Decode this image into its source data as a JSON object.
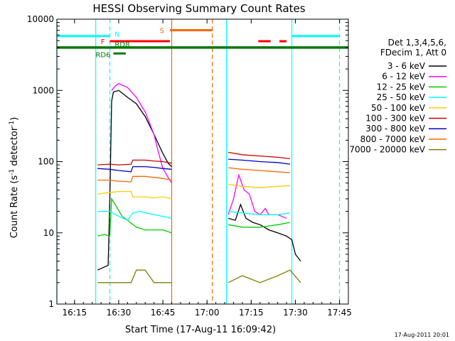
{
  "chart_data": {
    "type": "line",
    "title": "HESSI Observing Summary Count Rates",
    "xlabel": "Start Time (17-Aug-11 16:09:42)",
    "ylabel": "Count Rate (s",
    "ylabel_sup": "-1",
    "ylabel_tail": " detector",
    "ylabel_end": ")",
    "yscale": "log",
    "xlim": [
      16.15,
      17.8
    ],
    "ylim": [
      1,
      10000
    ],
    "x_ticks": [
      {
        "x": 16.25,
        "label": "16:15"
      },
      {
        "x": 16.5,
        "label": "16:30"
      },
      {
        "x": 16.75,
        "label": "16:45"
      },
      {
        "x": 17.0,
        "label": "17:00"
      },
      {
        "x": 17.25,
        "label": "17:15"
      },
      {
        "x": 17.5,
        "label": "17:30"
      },
      {
        "x": 17.75,
        "label": "17:45"
      }
    ],
    "y_ticks": [
      {
        "y": 1,
        "label": "1"
      },
      {
        "y": 10,
        "label": "10"
      },
      {
        "y": 100,
        "label": "100"
      },
      {
        "y": 1000,
        "label": "1000"
      },
      {
        "y": 10000,
        "label": "10000"
      }
    ],
    "legend_header": [
      "Det 1,3,4,5,6,",
      "FDecim 1, Att 0"
    ],
    "legend_position": "right",
    "series": [
      {
        "name": "3 - 6 keV",
        "color": "#000000",
        "segments": [
          [
            [
              16.38,
              3
            ],
            [
              16.44,
              3.5
            ],
            [
              16.45,
              30
            ],
            [
              16.46,
              700
            ],
            [
              16.47,
              950
            ],
            [
              16.5,
              1000
            ],
            [
              16.55,
              800
            ],
            [
              16.6,
              650
            ],
            [
              16.65,
              430
            ],
            [
              16.7,
              240
            ],
            [
              16.75,
              130
            ],
            [
              16.78,
              95
            ],
            [
              16.8,
              85
            ]
          ],
          [
            [
              17.12,
              16
            ],
            [
              17.16,
              15
            ],
            [
              17.19,
              25
            ],
            [
              17.22,
              16
            ],
            [
              17.26,
              14
            ],
            [
              17.3,
              13
            ],
            [
              17.35,
              11
            ],
            [
              17.4,
              10
            ],
            [
              17.45,
              9
            ],
            [
              17.48,
              8
            ],
            [
              17.5,
              5
            ],
            [
              17.53,
              4
            ]
          ]
        ]
      },
      {
        "name": "6 - 12 keV",
        "color": "#ff00ff",
        "segments": [
          [
            [
              16.46,
              1000
            ],
            [
              16.48,
              1150
            ],
            [
              16.5,
              1250
            ],
            [
              16.55,
              1100
            ],
            [
              16.6,
              800
            ],
            [
              16.65,
              500
            ],
            [
              16.7,
              240
            ],
            [
              16.72,
              150
            ],
            [
              16.75,
              80
            ],
            [
              16.78,
              60
            ],
            [
              16.8,
              50
            ]
          ],
          [
            [
              17.12,
              18
            ],
            [
              17.15,
              30
            ],
            [
              17.18,
              65
            ],
            [
              17.21,
              40
            ],
            [
              17.24,
              35
            ],
            [
              17.27,
              20
            ],
            [
              17.3,
              18
            ],
            [
              17.33,
              22
            ],
            [
              17.35,
              18
            ],
            [
              17.4,
              18
            ],
            [
              17.45,
              16
            ]
          ]
        ]
      },
      {
        "name": "12 - 25 keV",
        "color": "#00cc00",
        "segments": [
          [
            [
              16.38,
              9
            ],
            [
              16.42,
              9.5
            ],
            [
              16.45,
              9
            ],
            [
              16.46,
              30
            ],
            [
              16.48,
              25
            ],
            [
              16.52,
              17
            ],
            [
              16.55,
              15
            ],
            [
              16.6,
              12
            ],
            [
              16.65,
              11
            ],
            [
              16.7,
              11
            ],
            [
              16.75,
              11
            ],
            [
              16.8,
              10
            ]
          ],
          [
            [
              17.12,
              13
            ],
            [
              17.2,
              12
            ],
            [
              17.3,
              12
            ],
            [
              17.4,
              13
            ],
            [
              17.47,
              14
            ]
          ]
        ]
      },
      {
        "name": "25 - 50 keV",
        "color": "#00ffff",
        "segments": [
          [
            [
              16.38,
              20
            ],
            [
              16.45,
              20
            ],
            [
              16.5,
              17
            ],
            [
              16.55,
              15
            ],
            [
              16.58,
              19
            ],
            [
              16.62,
              20
            ],
            [
              16.7,
              18
            ],
            [
              16.75,
              17
            ],
            [
              16.8,
              16
            ]
          ],
          [
            [
              17.12,
              20
            ],
            [
              17.2,
              19
            ],
            [
              17.3,
              18
            ],
            [
              17.4,
              18
            ],
            [
              17.47,
              19
            ]
          ]
        ]
      },
      {
        "name": "50 - 100 keV",
        "color": "#ffcc00",
        "segments": [
          [
            [
              16.38,
              35
            ],
            [
              16.45,
              37
            ],
            [
              16.5,
              38
            ],
            [
              16.57,
              38
            ],
            [
              16.58,
              32
            ],
            [
              16.65,
              32
            ],
            [
              16.7,
              31
            ],
            [
              16.75,
              32
            ],
            [
              16.8,
              30
            ]
          ],
          [
            [
              17.12,
              48
            ],
            [
              17.2,
              45
            ],
            [
              17.3,
              43
            ],
            [
              17.4,
              45
            ],
            [
              17.47,
              46
            ]
          ]
        ]
      },
      {
        "name": "100 - 300 keV",
        "color": "#cc0000",
        "segments": [
          [
            [
              16.38,
              90
            ],
            [
              16.45,
              92
            ],
            [
              16.5,
              90
            ],
            [
              16.57,
              92
            ],
            [
              16.58,
              105
            ],
            [
              16.65,
              105
            ],
            [
              16.7,
              102
            ],
            [
              16.75,
              100
            ],
            [
              16.8,
              95
            ]
          ],
          [
            [
              17.12,
              135
            ],
            [
              17.2,
              125
            ],
            [
              17.3,
              120
            ],
            [
              17.4,
              115
            ],
            [
              17.47,
              110
            ]
          ]
        ]
      },
      {
        "name": "300 - 800 keV",
        "color": "#0000cc",
        "segments": [
          [
            [
              16.38,
              80
            ],
            [
              16.45,
              78
            ],
            [
              16.5,
              75
            ],
            [
              16.57,
              72
            ],
            [
              16.58,
              85
            ],
            [
              16.65,
              85
            ],
            [
              16.7,
              83
            ],
            [
              16.75,
              80
            ],
            [
              16.8,
              78
            ]
          ],
          [
            [
              17.12,
              108
            ],
            [
              17.2,
              105
            ],
            [
              17.3,
              100
            ],
            [
              17.4,
              97
            ],
            [
              17.47,
              92
            ]
          ]
        ]
      },
      {
        "name": "800 - 7000 keV",
        "color": "#ff6600",
        "segments": [
          [
            [
              16.38,
              55
            ],
            [
              16.45,
              55
            ],
            [
              16.5,
              53
            ],
            [
              16.57,
              52
            ],
            [
              16.58,
              62
            ],
            [
              16.65,
              62
            ],
            [
              16.7,
              60
            ],
            [
              16.75,
              58
            ],
            [
              16.8,
              55
            ]
          ],
          [
            [
              17.12,
              82
            ],
            [
              17.2,
              78
            ],
            [
              17.3,
              75
            ],
            [
              17.4,
              72
            ],
            [
              17.47,
              70
            ]
          ]
        ]
      },
      {
        "name": "7000 - 20000 keV",
        "color": "#808000",
        "segments": [
          [
            [
              16.38,
              2
            ],
            [
              16.45,
              2
            ],
            [
              16.5,
              2
            ],
            [
              16.57,
              2
            ],
            [
              16.6,
              3
            ],
            [
              16.65,
              3
            ],
            [
              16.7,
              2
            ],
            [
              16.75,
              2
            ],
            [
              16.8,
              2
            ]
          ],
          [
            [
              17.12,
              2
            ],
            [
              17.2,
              2.5
            ],
            [
              17.3,
              2
            ],
            [
              17.4,
              2.5
            ],
            [
              17.47,
              3
            ],
            [
              17.53,
              2
            ]
          ]
        ]
      }
    ],
    "flags": [
      {
        "label": "N",
        "color": "#00ffff",
        "y": 5800,
        "bars": [
          [
            16.15,
            16.45
          ],
          [
            17.48,
            17.75
          ]
        ]
      },
      {
        "label": "F",
        "color": "#ff0000",
        "y": 4900,
        "bars": [
          [
            16.45,
            16.79
          ],
          [
            17.29,
            17.36
          ],
          [
            17.41,
            17.45
          ]
        ]
      },
      {
        "label": "S",
        "color": "#ff6600",
        "y": 7000,
        "bars": [
          [
            16.79,
            17.03
          ]
        ]
      },
      {
        "label": "RD8",
        "color": "#007700",
        "y": 4000,
        "bars": [
          [
            16.15,
            17.8
          ]
        ]
      },
      {
        "label": "RD6",
        "color": "#007700",
        "y": 3300,
        "bars": [
          [
            16.47,
            16.54
          ]
        ]
      }
    ],
    "vlines": [
      {
        "x": 16.14,
        "color": "#00ffff",
        "style": "solid"
      },
      {
        "x": 16.37,
        "color": "#00ffff",
        "style": "solid"
      },
      {
        "x": 16.45,
        "color": "#00ffff",
        "style": "dashed"
      },
      {
        "x": 16.8,
        "color": "#ff6600",
        "style": "solid"
      },
      {
        "x": 17.03,
        "color": "#ff6600",
        "style": "dashed"
      },
      {
        "x": 17.11,
        "color": "#00ffff",
        "style": "solid"
      },
      {
        "x": 17.48,
        "color": "#00ffff",
        "style": "solid"
      },
      {
        "x": 17.75,
        "color": "#00ffff",
        "style": "dashed"
      }
    ],
    "footer": "17-Aug-2011 20:01"
  }
}
